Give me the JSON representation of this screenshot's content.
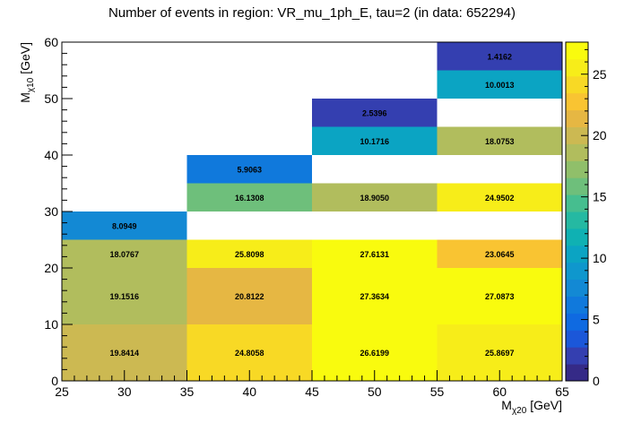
{
  "chart_data": {
    "type": "heatmap",
    "title": "Number of events in region: VR_mu_1ph_E, tau=2 (in data: 652294)",
    "xlabel": {
      "main": "M",
      "sub": "χ20",
      "unit": " [GeV]"
    },
    "ylabel": {
      "main": "M",
      "sub": "χ10",
      "unit": " [GeV]"
    },
    "xlim": [
      25,
      65
    ],
    "ylim": [
      0,
      60
    ],
    "zlim": [
      0,
      27.6131
    ],
    "x_ticks": [
      25,
      30,
      35,
      40,
      45,
      50,
      55,
      60,
      65
    ],
    "y_ticks": [
      0,
      10,
      20,
      30,
      40,
      50,
      60
    ],
    "z_ticks": [
      0,
      5,
      10,
      15,
      20,
      25
    ],
    "cells": [
      {
        "x0": 25,
        "x1": 35,
        "y0": 0,
        "y1": 10,
        "value": 19.8414,
        "label": "19.8414"
      },
      {
        "x0": 35,
        "x1": 45,
        "y0": 0,
        "y1": 10,
        "value": 24.8058,
        "label": "24.8058"
      },
      {
        "x0": 45,
        "x1": 55,
        "y0": 0,
        "y1": 10,
        "value": 26.6199,
        "label": "26.6199"
      },
      {
        "x0": 55,
        "x1": 65,
        "y0": 0,
        "y1": 10,
        "value": 25.8697,
        "label": "25.8697"
      },
      {
        "x0": 25,
        "x1": 35,
        "y0": 10,
        "y1": 20,
        "value": 19.1516,
        "label": "19.1516"
      },
      {
        "x0": 35,
        "x1": 45,
        "y0": 10,
        "y1": 20,
        "value": 20.8122,
        "label": "20.8122"
      },
      {
        "x0": 45,
        "x1": 55,
        "y0": 10,
        "y1": 20,
        "value": 27.3634,
        "label": "27.3634"
      },
      {
        "x0": 55,
        "x1": 65,
        "y0": 10,
        "y1": 20,
        "value": 27.0873,
        "label": "27.0873"
      },
      {
        "x0": 25,
        "x1": 35,
        "y0": 20,
        "y1": 25,
        "value": 18.0767,
        "label": "18.0767"
      },
      {
        "x0": 35,
        "x1": 45,
        "y0": 20,
        "y1": 25,
        "value": 25.8098,
        "label": "25.8098"
      },
      {
        "x0": 45,
        "x1": 55,
        "y0": 20,
        "y1": 25,
        "value": 27.6131,
        "label": "27.6131"
      },
      {
        "x0": 55,
        "x1": 65,
        "y0": 20,
        "y1": 25,
        "value": 23.0645,
        "label": "23.0645"
      },
      {
        "x0": 25,
        "x1": 35,
        "y0": 25,
        "y1": 30,
        "value": 8.0949,
        "label": "8.0949"
      },
      {
        "x0": 35,
        "x1": 45,
        "y0": 30,
        "y1": 35,
        "value": 16.1308,
        "label": "16.1308"
      },
      {
        "x0": 45,
        "x1": 55,
        "y0": 30,
        "y1": 35,
        "value": 18.905,
        "label": "18.9050"
      },
      {
        "x0": 55,
        "x1": 65,
        "y0": 30,
        "y1": 35,
        "value": 24.9502,
        "label": "24.9502"
      },
      {
        "x0": 35,
        "x1": 45,
        "y0": 35,
        "y1": 40,
        "value": 5.9063,
        "label": "5.9063"
      },
      {
        "x0": 45,
        "x1": 55,
        "y0": 40,
        "y1": 45,
        "value": 10.1716,
        "label": "10.1716"
      },
      {
        "x0": 55,
        "x1": 65,
        "y0": 40,
        "y1": 45,
        "value": 18.0753,
        "label": "18.0753"
      },
      {
        "x0": 45,
        "x1": 55,
        "y0": 45,
        "y1": 50,
        "value": 2.5396,
        "label": "2.5396"
      },
      {
        "x0": 55,
        "x1": 65,
        "y0": 50,
        "y1": 55,
        "value": 10.0013,
        "label": "10.0013"
      },
      {
        "x0": 55,
        "x1": 65,
        "y0": 55,
        "y1": 60,
        "value": 1.4162,
        "label": "1.4162"
      }
    ],
    "palette": [
      "#352a87",
      "#343fb0",
      "#1b57d9",
      "#0f6ae1",
      "#1079dc",
      "#1389d4",
      "#0f97cd",
      "#0ba4c3",
      "#0fb1b3",
      "#25b9a2",
      "#46be8f",
      "#6ebf7b",
      "#90bf6a",
      "#b1bd5d",
      "#ccb952",
      "#e6b743",
      "#f9c432",
      "#f8d925",
      "#f7ed19",
      "#f9fb0e"
    ],
    "grid": false,
    "legend": "colorbar-right"
  }
}
